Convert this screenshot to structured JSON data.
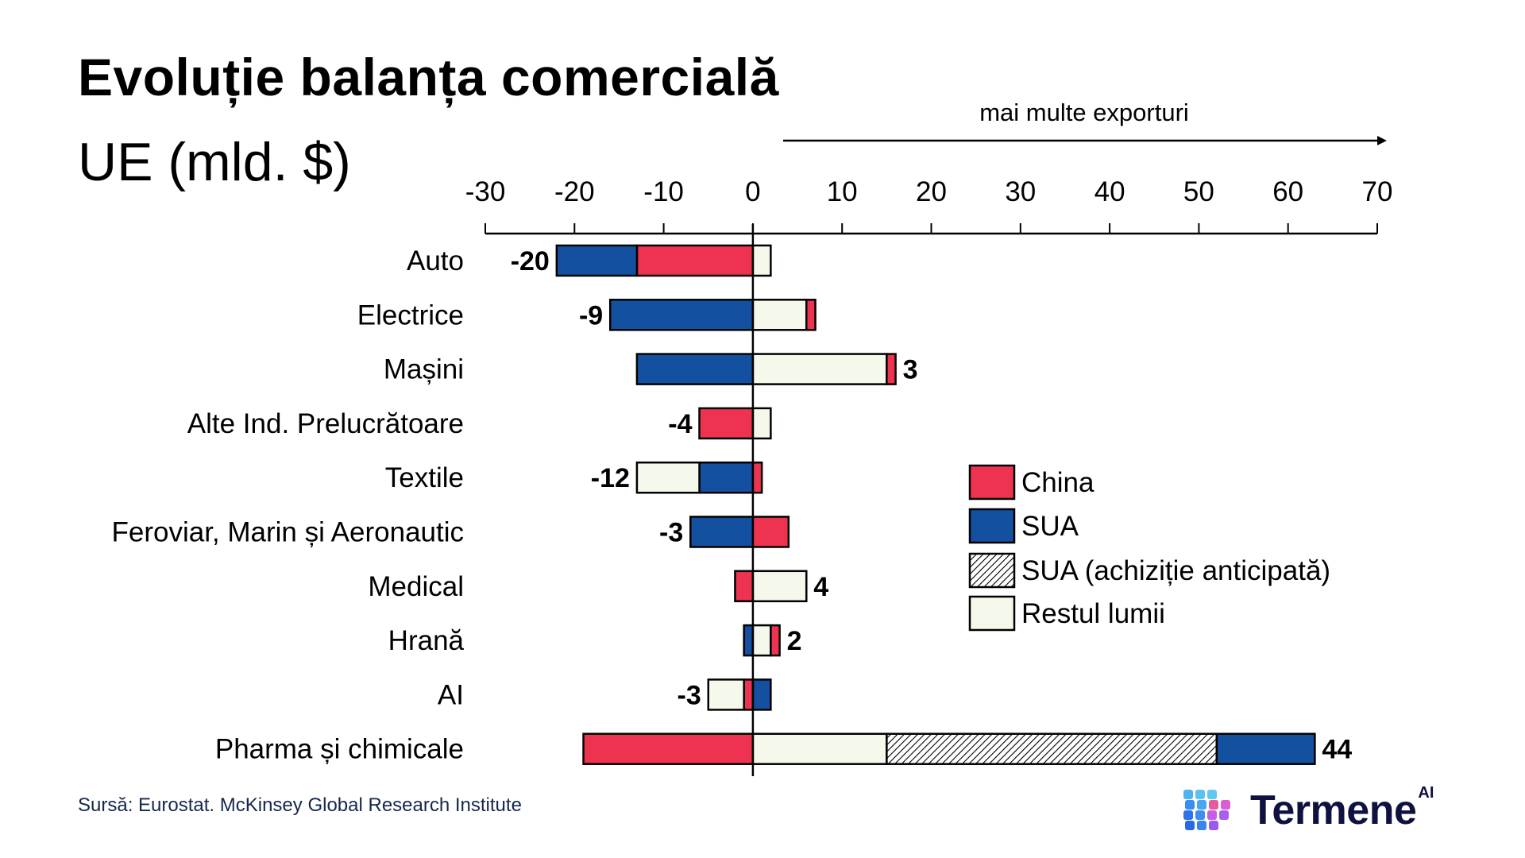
{
  "header": {
    "title": "Evoluție balanța comercială",
    "subtitle": "UE (mld. $)"
  },
  "footer": {
    "source": "Sursă: Eurostat. McKinsey Global Research Institute",
    "logo_text": "Termene",
    "logo_sup": "AI"
  },
  "colors": {
    "china": "#EE3350",
    "sua": "#1351A0",
    "rest": "#F5F9EC",
    "outline": "#000000"
  },
  "chart_data": {
    "type": "bar",
    "orientation": "horizontal",
    "stacked": true,
    "title": "Evoluție balanța comercială UE (mld. $)",
    "annotation": "mai multe exporturi",
    "xlabel": "",
    "ylabel": "",
    "xlim": [
      -30,
      70
    ],
    "xticks": [
      -30,
      -20,
      -10,
      0,
      10,
      20,
      30,
      40,
      50,
      60,
      70
    ],
    "grid": false,
    "legend_position": "right",
    "legend": [
      {
        "key": "china",
        "label": "China"
      },
      {
        "key": "sua",
        "label": "SUA"
      },
      {
        "key": "sua_anticipated",
        "label": "SUA (achiziție anticipată)"
      },
      {
        "key": "rest",
        "label": "Restul lumii"
      }
    ],
    "categories": [
      "Auto",
      "Electrice",
      "Mașini",
      "Alte Ind. Prelucrătoare",
      "Textile",
      "Feroviar, Marin și Aeronautic",
      "Medical",
      "Hrană",
      "AI",
      "Pharma și chimicale"
    ],
    "net_labels": [
      "-20",
      "-9",
      "3",
      "-4",
      "-12",
      "-3",
      "4",
      "2",
      "-3",
      "44"
    ],
    "net_values": [
      -20,
      -9,
      3,
      -4,
      -12,
      -3,
      4,
      2,
      -3,
      44
    ],
    "bars": [
      {
        "category": "Auto",
        "negative": [
          {
            "series": "china",
            "value": -13
          },
          {
            "series": "sua",
            "value": -9
          }
        ],
        "positive": [
          {
            "series": "rest",
            "value": 2
          }
        ]
      },
      {
        "category": "Electrice",
        "negative": [
          {
            "series": "sua",
            "value": -16
          }
        ],
        "positive": [
          {
            "series": "rest",
            "value": 6
          },
          {
            "series": "china",
            "value": 1
          }
        ]
      },
      {
        "category": "Mașini",
        "negative": [
          {
            "series": "sua",
            "value": -13
          }
        ],
        "positive": [
          {
            "series": "rest",
            "value": 15
          },
          {
            "series": "china",
            "value": 1
          }
        ]
      },
      {
        "category": "Alte Ind. Prelucrătoare",
        "negative": [
          {
            "series": "china",
            "value": -6
          }
        ],
        "positive": [
          {
            "series": "rest",
            "value": 2
          }
        ]
      },
      {
        "category": "Textile",
        "negative": [
          {
            "series": "sua",
            "value": -6
          },
          {
            "series": "rest",
            "value": -7
          }
        ],
        "positive": [
          {
            "series": "china",
            "value": 1
          }
        ]
      },
      {
        "category": "Feroviar, Marin și Aeronautic",
        "negative": [
          {
            "series": "sua",
            "value": -7
          }
        ],
        "positive": [
          {
            "series": "china",
            "value": 4
          }
        ]
      },
      {
        "category": "Medical",
        "negative": [
          {
            "series": "china",
            "value": -2
          }
        ],
        "positive": [
          {
            "series": "rest",
            "value": 6
          }
        ]
      },
      {
        "category": "Hrană",
        "negative": [
          {
            "series": "sua",
            "value": -1
          }
        ],
        "positive": [
          {
            "series": "rest",
            "value": 2
          },
          {
            "series": "china",
            "value": 1
          }
        ]
      },
      {
        "category": "AI",
        "negative": [
          {
            "series": "china",
            "value": -1
          },
          {
            "series": "rest",
            "value": -4
          }
        ],
        "positive": [
          {
            "series": "sua",
            "value": 2
          }
        ]
      },
      {
        "category": "Pharma și chimicale",
        "negative": [
          {
            "series": "china",
            "value": -19
          }
        ],
        "positive": [
          {
            "series": "rest",
            "value": 15
          },
          {
            "series": "sua_anticipated",
            "value": 37
          },
          {
            "series": "sua",
            "value": 11
          }
        ]
      }
    ]
  }
}
